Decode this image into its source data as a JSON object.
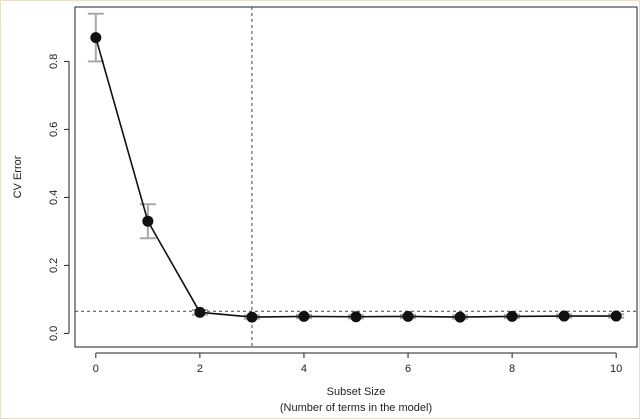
{
  "chart_data": {
    "type": "scatter",
    "title": "",
    "xlabel": "Subset Size",
    "xlabel_sub": "(Number of terms in the model)",
    "ylabel": "CV Error",
    "xlim": [
      -0.4,
      10.4
    ],
    "ylim": [
      -0.04,
      0.96
    ],
    "x_ticks": [
      0,
      2,
      4,
      6,
      8,
      10
    ],
    "x_tick_labels": [
      "0",
      "2",
      "4",
      "6",
      "8",
      "10"
    ],
    "y_ticks": [
      0.0,
      0.2,
      0.4,
      0.6,
      0.8
    ],
    "y_tick_labels": [
      "0.0",
      "0.2",
      "0.4",
      "0.6",
      "0.8"
    ],
    "grid": false,
    "connected": true,
    "series": [
      {
        "x": [
          0,
          1,
          2,
          3,
          4,
          5,
          6,
          7,
          8,
          9,
          10
        ],
        "y": [
          0.87,
          0.33,
          0.062,
          0.048,
          0.05,
          0.049,
          0.05,
          0.048,
          0.05,
          0.051,
          0.051
        ],
        "error_low": [
          0.8,
          0.28,
          0.055,
          0.043,
          0.045,
          0.044,
          0.045,
          0.043,
          0.045,
          0.046,
          0.046
        ],
        "error_high": [
          0.94,
          0.38,
          0.069,
          0.053,
          0.055,
          0.054,
          0.055,
          0.053,
          0.055,
          0.056,
          0.056
        ]
      }
    ],
    "reference_lines": {
      "vertical_x": 3,
      "horizontal_y": 0.065
    },
    "colors": {
      "line": "#111111",
      "point": "#111111",
      "error_bar": "#a8a8a8",
      "axis": "#222222",
      "reference": "#444444",
      "frame": "#e6e0c8"
    }
  }
}
